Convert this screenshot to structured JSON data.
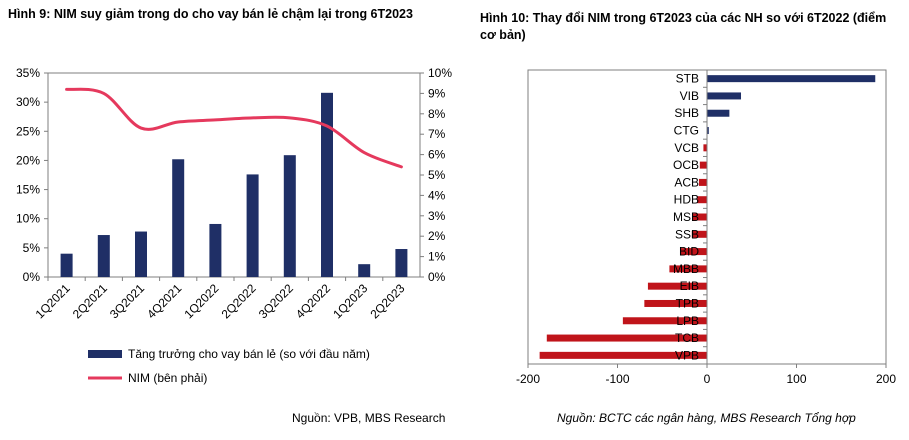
{
  "left_chart": {
    "title": "Hình 9: NIM suy giảm trong do cho vay bán lẻ chậm lại trong 6T2023",
    "source": "Nguồn: VPB, MBS Research",
    "legend": {
      "bar": "Tăng trưởng cho vay bán lẻ (so với đầu năm)",
      "line": "NIM (bên phải)"
    }
  },
  "right_chart": {
    "title": "Hình 10: Thay đổi NIM trong 6T2023 của các NH so với 6T2022 (điểm cơ bản)",
    "source": "Nguồn: BCTC các ngân hàng, MBS Research Tổng hợp"
  },
  "colors": {
    "bar": "#1f2f66",
    "line": "#e5395d",
    "neg_bar": "#c0141a"
  },
  "chart_data": [
    {
      "type": "bar",
      "categories": [
        "1Q2021",
        "2Q2021",
        "3Q2021",
        "4Q2021",
        "1Q2022",
        "2Q2022",
        "3Q2022",
        "4Q2022",
        "1Q2023",
        "2Q2023"
      ],
      "series": [
        {
          "name": "Tăng trưởng cho vay bán lẻ (so với đầu năm)",
          "axis": "left",
          "values": [
            4,
            7.2,
            7.8,
            20.2,
            9.1,
            17.6,
            20.9,
            31.6,
            2.2,
            4.8
          ]
        },
        {
          "name": "NIM (bên phải)",
          "type": "line",
          "axis": "right",
          "values": [
            9.2,
            9.0,
            7.3,
            7.6,
            7.7,
            7.8,
            7.8,
            7.4,
            6.1,
            5.4
          ]
        }
      ],
      "yticks_left": [
        "0%",
        "5%",
        "10%",
        "15%",
        "20%",
        "25%",
        "30%",
        "35%"
      ],
      "yticks_right": [
        "0%",
        "1%",
        "2%",
        "3%",
        "4%",
        "5%",
        "6%",
        "7%",
        "8%",
        "9%",
        "10%"
      ],
      "ylim_left": [
        0,
        35
      ],
      "ylim_right": [
        0,
        10
      ],
      "legend_position": "bottom"
    },
    {
      "type": "bar",
      "orientation": "horizontal",
      "categories": [
        "STB",
        "VIB",
        "SHB",
        "CTG",
        "VCB",
        "OCB",
        "ACB",
        "HDB",
        "MSB",
        "SSB",
        "BID",
        "MBB",
        "EIB",
        "TPB",
        "LPB",
        "TCB",
        "VPB"
      ],
      "values": [
        188,
        38,
        25,
        2,
        -4,
        -8,
        -9,
        -11,
        -16,
        -17,
        -30,
        -42,
        -66,
        -70,
        -94,
        -179,
        -187
      ],
      "xticks": [
        "-200",
        "-100",
        "0",
        "100",
        "200"
      ],
      "xlim": [
        -200,
        200
      ]
    }
  ]
}
